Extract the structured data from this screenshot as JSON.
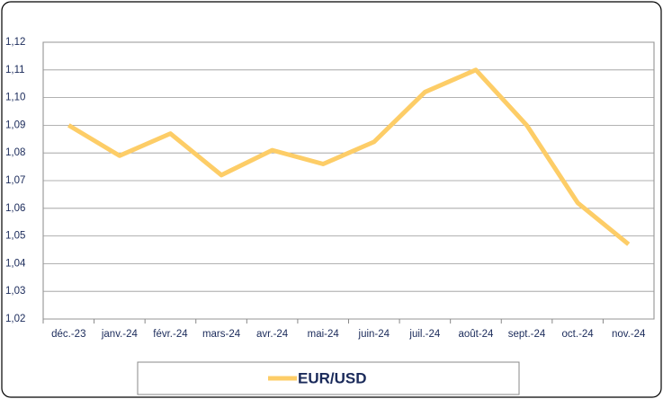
{
  "chart_data": {
    "type": "line",
    "categories": [
      "déc.-23",
      "janv.-24",
      "févr.-24",
      "mars-24",
      "avr.-24",
      "mai-24",
      "juin-24",
      "juil.-24",
      "août-24",
      "sept.-24",
      "oct.-24",
      "nov.-24"
    ],
    "series": [
      {
        "name": "EUR/USD",
        "color": "#fdcd67",
        "values": [
          1.09,
          1.079,
          1.087,
          1.072,
          1.081,
          1.076,
          1.084,
          1.102,
          1.11,
          1.09,
          1.062,
          1.047
        ]
      }
    ],
    "ylim": [
      1.02,
      1.12
    ],
    "yticks": [
      {
        "value": 1.02,
        "label": "1,02"
      },
      {
        "value": 1.03,
        "label": "1,03"
      },
      {
        "value": 1.04,
        "label": "1,04"
      },
      {
        "value": 1.05,
        "label": "1,05"
      },
      {
        "value": 1.06,
        "label": "1,06"
      },
      {
        "value": 1.07,
        "label": "1,07"
      },
      {
        "value": 1.08,
        "label": "1,08"
      },
      {
        "value": 1.09,
        "label": "1,09"
      },
      {
        "value": 1.1,
        "label": "1,10"
      },
      {
        "value": 1.11,
        "label": "1,11"
      },
      {
        "value": 1.12,
        "label": "1,12"
      }
    ],
    "grid": true,
    "legend": "bottom"
  }
}
